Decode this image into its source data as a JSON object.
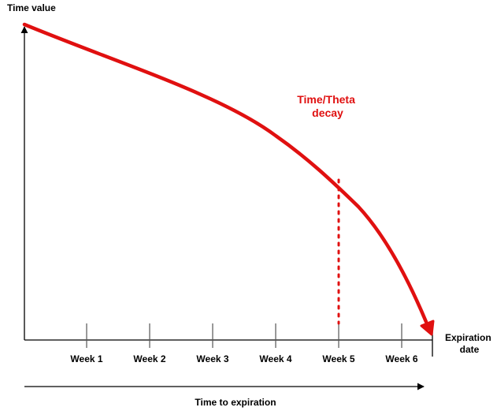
{
  "chart_data": {
    "type": "line",
    "y_axis_label": "Time value",
    "x_axis_end_label": [
      "Expiration",
      "date"
    ],
    "x_axis_caption": "Time to expiration",
    "annotation": [
      "Time/Theta",
      "decay"
    ],
    "ticks": [
      "Week 1",
      "Week 2",
      "Week 3",
      "Week 4",
      "Week 5",
      "Week 6"
    ],
    "marker_at": "Week 5",
    "curve_color": "#e01010",
    "axis_color": "#000000",
    "tick_color": "#555555"
  }
}
